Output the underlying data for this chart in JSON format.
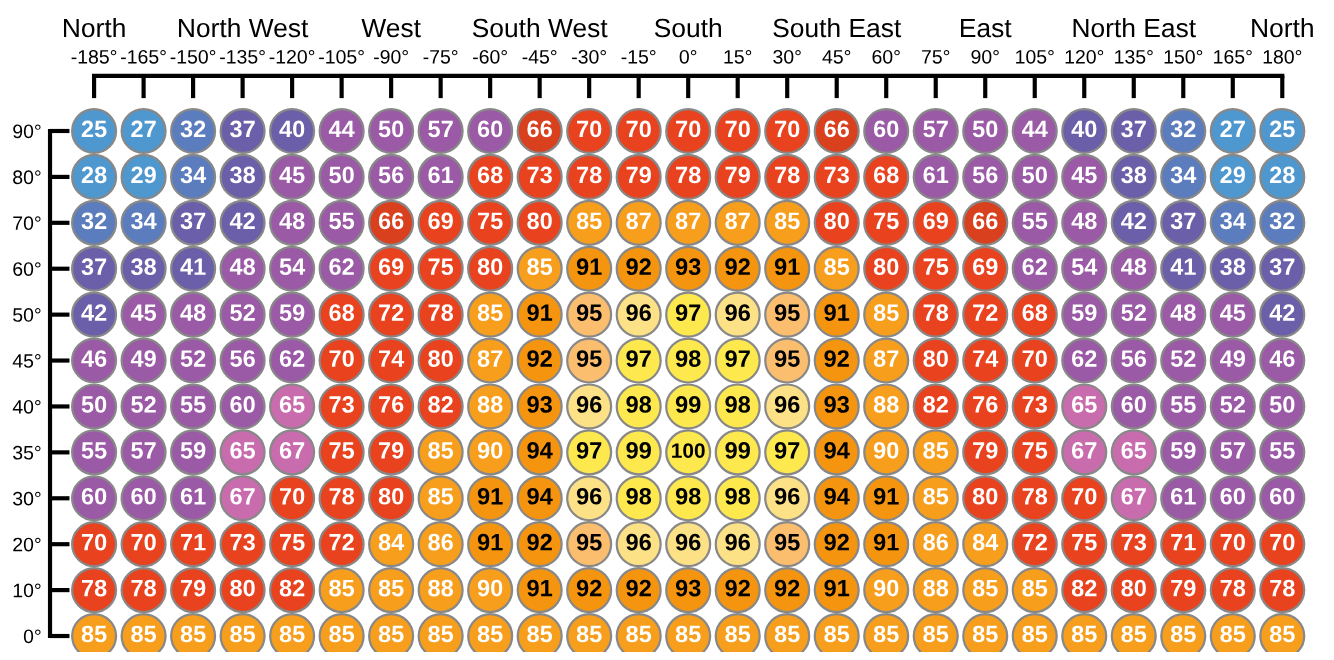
{
  "chart_data": {
    "type": "heatmap",
    "categories": [
      "-185°",
      "-165°",
      "-150°",
      "-135°",
      "-120°",
      "-105°",
      "-90°",
      "-75°",
      "-60°",
      "-45°",
      "-30°",
      "-15°",
      "0°",
      "15°",
      "30°",
      "45°",
      "60°",
      "75°",
      "90°",
      "105°",
      "120°",
      "135°",
      "150°",
      "165°",
      "180°"
    ],
    "y_categories": [
      "90°",
      "80°",
      "70°",
      "60°",
      "50°",
      "45°",
      "40°",
      "35°",
      "30°",
      "20°",
      "10°",
      "0°"
    ],
    "cells": [
      [
        25,
        27,
        32,
        37,
        40,
        44,
        50,
        57,
        60,
        66,
        70,
        70,
        70,
        70,
        70,
        66,
        60,
        57,
        50,
        44,
        40,
        37,
        32,
        27,
        25
      ],
      [
        28,
        29,
        34,
        38,
        45,
        50,
        56,
        61,
        68,
        73,
        78,
        79,
        78,
        79,
        78,
        73,
        68,
        61,
        56,
        50,
        45,
        38,
        34,
        29,
        28
      ],
      [
        32,
        34,
        37,
        42,
        48,
        55,
        66,
        69,
        75,
        80,
        85,
        87,
        87,
        87,
        85,
        80,
        75,
        69,
        66,
        55,
        48,
        42,
        37,
        34,
        32
      ],
      [
        37,
        38,
        41,
        48,
        54,
        62,
        69,
        75,
        80,
        85,
        91,
        92,
        93,
        92,
        91,
        85,
        80,
        75,
        69,
        62,
        54,
        48,
        41,
        38,
        37
      ],
      [
        42,
        45,
        48,
        52,
        59,
        68,
        72,
        78,
        85,
        91,
        95,
        96,
        97,
        96,
        95,
        91,
        85,
        78,
        72,
        68,
        59,
        52,
        48,
        45,
        42
      ],
      [
        46,
        49,
        52,
        56,
        62,
        70,
        74,
        80,
        87,
        92,
        95,
        97,
        98,
        97,
        95,
        92,
        87,
        80,
        74,
        70,
        62,
        56,
        52,
        49,
        46
      ],
      [
        50,
        52,
        55,
        60,
        65,
        73,
        76,
        82,
        88,
        93,
        96,
        98,
        99,
        98,
        96,
        93,
        88,
        82,
        76,
        73,
        65,
        60,
        55,
        52,
        50
      ],
      [
        55,
        57,
        59,
        65,
        67,
        75,
        79,
        85,
        90,
        94,
        97,
        99,
        100,
        99,
        97,
        94,
        90,
        85,
        79,
        75,
        67,
        65,
        59,
        57,
        55
      ],
      [
        60,
        60,
        61,
        67,
        70,
        78,
        80,
        85,
        91,
        94,
        96,
        98,
        98,
        98,
        96,
        94,
        91,
        85,
        80,
        78,
        70,
        67,
        61,
        60,
        60
      ],
      [
        70,
        70,
        71,
        73,
        75,
        72,
        84,
        86,
        91,
        92,
        95,
        96,
        96,
        96,
        95,
        92,
        91,
        86,
        84,
        72,
        75,
        73,
        71,
        70,
        70
      ],
      [
        78,
        78,
        79,
        80,
        82,
        85,
        85,
        88,
        90,
        91,
        92,
        92,
        93,
        92,
        92,
        91,
        90,
        88,
        85,
        85,
        82,
        80,
        79,
        78,
        78
      ],
      [
        85,
        85,
        85,
        85,
        85,
        85,
        85,
        85,
        85,
        85,
        85,
        85,
        85,
        85,
        85,
        85,
        85,
        85,
        85,
        85,
        85,
        85,
        85,
        85,
        85
      ]
    ],
    "data_labels": true,
    "annotations": [
      "North",
      "North West",
      "West",
      "South West",
      "South",
      "South East",
      "East",
      "North East",
      "North"
    ]
  }
}
